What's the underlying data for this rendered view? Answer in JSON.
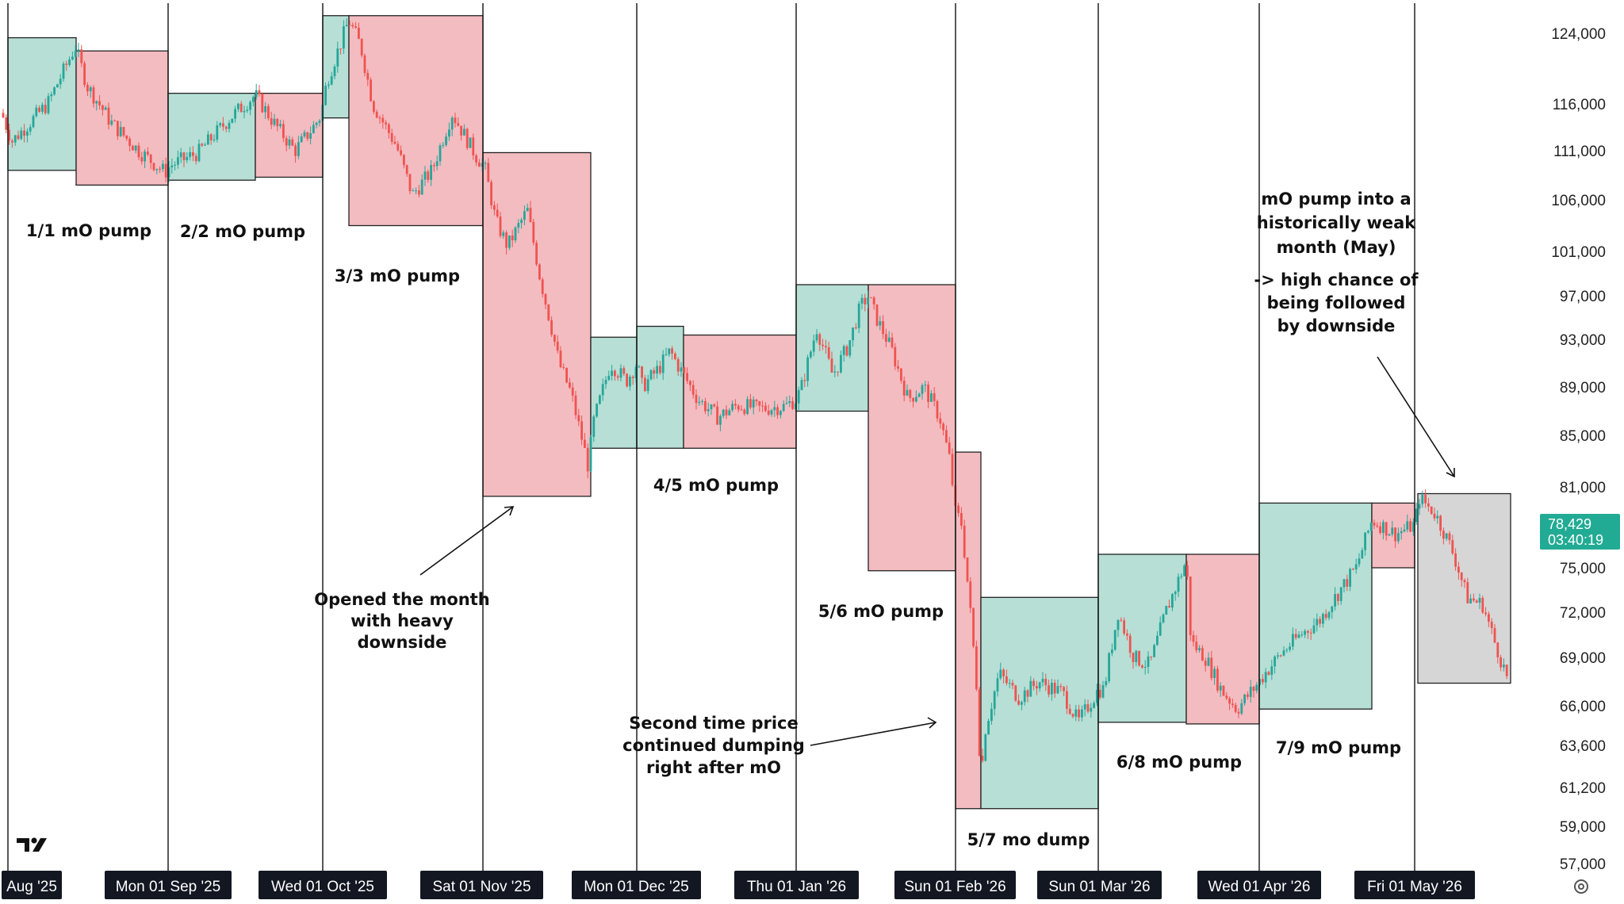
{
  "chart_data": {
    "type": "candlestick",
    "y_axis": {
      "position": "right",
      "ticks": [
        "124,000",
        "116,000",
        "111,000",
        "106,000",
        "101,000",
        "97,000",
        "93,000",
        "89,000",
        "85,000",
        "81,000",
        "75,000",
        "72,000",
        "69,000",
        "66,000",
        "63,600",
        "61,200",
        "59,000",
        "57,000"
      ]
    },
    "x_axis": {
      "ticks": [
        "Aug '25",
        "Mon 01 Sep '25",
        "Wed 01 Oct '25",
        "Sat 01 Nov '25",
        "Mon 01 Dec '25",
        "Thu 01 Jan '26",
        "Sun 01 Feb '26",
        "Sun 01 Mar '26",
        "Wed 01 Apr '26",
        "Fri 01 May '26"
      ]
    },
    "current_price": {
      "value": "78,429",
      "countdown": "03:40:19"
    },
    "colors": {
      "up": "#26a69a",
      "down": "#ef5350",
      "pump_box": "#b7dfd5",
      "dump_box": "#f3bcc1",
      "pending_box": "#d6d6d6",
      "price_label": "#22ab94"
    },
    "month_boxes": [
      {
        "month": "Aug '25",
        "segment": "mO",
        "range": [
          109000,
          123500
        ],
        "color": "green"
      },
      {
        "month": "Aug '25",
        "segment": "rest",
        "range": [
          107500,
          122000
        ],
        "color": "red"
      },
      {
        "month": "Sep '25",
        "segment": "mO",
        "range": [
          108000,
          117200
        ],
        "color": "green"
      },
      {
        "month": "Sep '25",
        "segment": "rest",
        "range": [
          108300,
          117200
        ],
        "color": "red"
      },
      {
        "month": "Oct '25",
        "segment": "mO",
        "range": [
          114500,
          126000
        ],
        "color": "green"
      },
      {
        "month": "Oct '25",
        "segment": "rest",
        "range": [
          103500,
          126000
        ],
        "color": "red"
      },
      {
        "month": "Nov '25",
        "segment": "mO",
        "range": [
          80300,
          110800
        ],
        "color": "red"
      },
      {
        "month": "Nov '25",
        "segment": "rest",
        "range": [
          84000,
          93200
        ],
        "color": "green"
      },
      {
        "month": "Dec '25",
        "segment": "mO",
        "range": [
          84000,
          94200
        ],
        "color": "green"
      },
      {
        "month": "Dec '25",
        "segment": "rest",
        "range": [
          84000,
          93400
        ],
        "color": "red"
      },
      {
        "month": "Jan '26",
        "segment": "mO",
        "range": [
          87000,
          98000
        ],
        "color": "green"
      },
      {
        "month": "Jan '26",
        "segment": "rest",
        "range": [
          74800,
          98000
        ],
        "color": "red"
      },
      {
        "month": "Feb '26",
        "segment": "mO",
        "range": [
          60000,
          83700
        ],
        "color": "red"
      },
      {
        "month": "Feb '26",
        "segment": "rest",
        "range": [
          60000,
          73000
        ],
        "color": "green"
      },
      {
        "month": "Mar '26",
        "segment": "mO",
        "range": [
          65000,
          76000
        ],
        "color": "green"
      },
      {
        "month": "Mar '26",
        "segment": "rest",
        "range": [
          64900,
          76000
        ],
        "color": "red"
      },
      {
        "month": "Apr '26",
        "segment": "mO",
        "range": [
          65800,
          79800
        ],
        "color": "green"
      },
      {
        "month": "Apr '26",
        "segment": "rest",
        "range": [
          75000,
          79800
        ],
        "color": "red"
      },
      {
        "month": "May '26",
        "segment": "mO",
        "range": [
          67400,
          80500
        ],
        "color": "gray"
      }
    ],
    "annotations": [
      "1/1 mO pump",
      "2/2 mO pump",
      "3/3 mO pump",
      "Opened the month with heavy downside",
      "4/5 mO pump",
      "Second time price continued dumping right after mO",
      "5/6 mO pump",
      "5/7 mo dump",
      "6/8 mO pump",
      "7/9 mO pump",
      "mO pump into a historically weak month (May)",
      "-> high chance of being followed by downside"
    ]
  },
  "labels": {
    "ann1": "1/1 mO pump",
    "ann2": "2/2 mO pump",
    "ann3": "3/3 mO pump",
    "ann_nov_1": "Opened the month",
    "ann_nov_2": "with heavy",
    "ann_nov_3": "downside",
    "ann4": "4/5 mO pump",
    "ann_jan_1": "Second time price",
    "ann_jan_2": "continued dumping",
    "ann_jan_3": "right after mO",
    "ann5": "5/6 mO pump",
    "ann6": "5/7 mo dump",
    "ann7": "6/8 mO pump",
    "ann8": "7/9 mO pump",
    "ann_may_1": "mO pump into a",
    "ann_may_2": "historically weak",
    "ann_may_3": "month (May)",
    "ann_may_4": "-> high chance of",
    "ann_may_5": "being followed",
    "ann_may_6": "by downside"
  }
}
